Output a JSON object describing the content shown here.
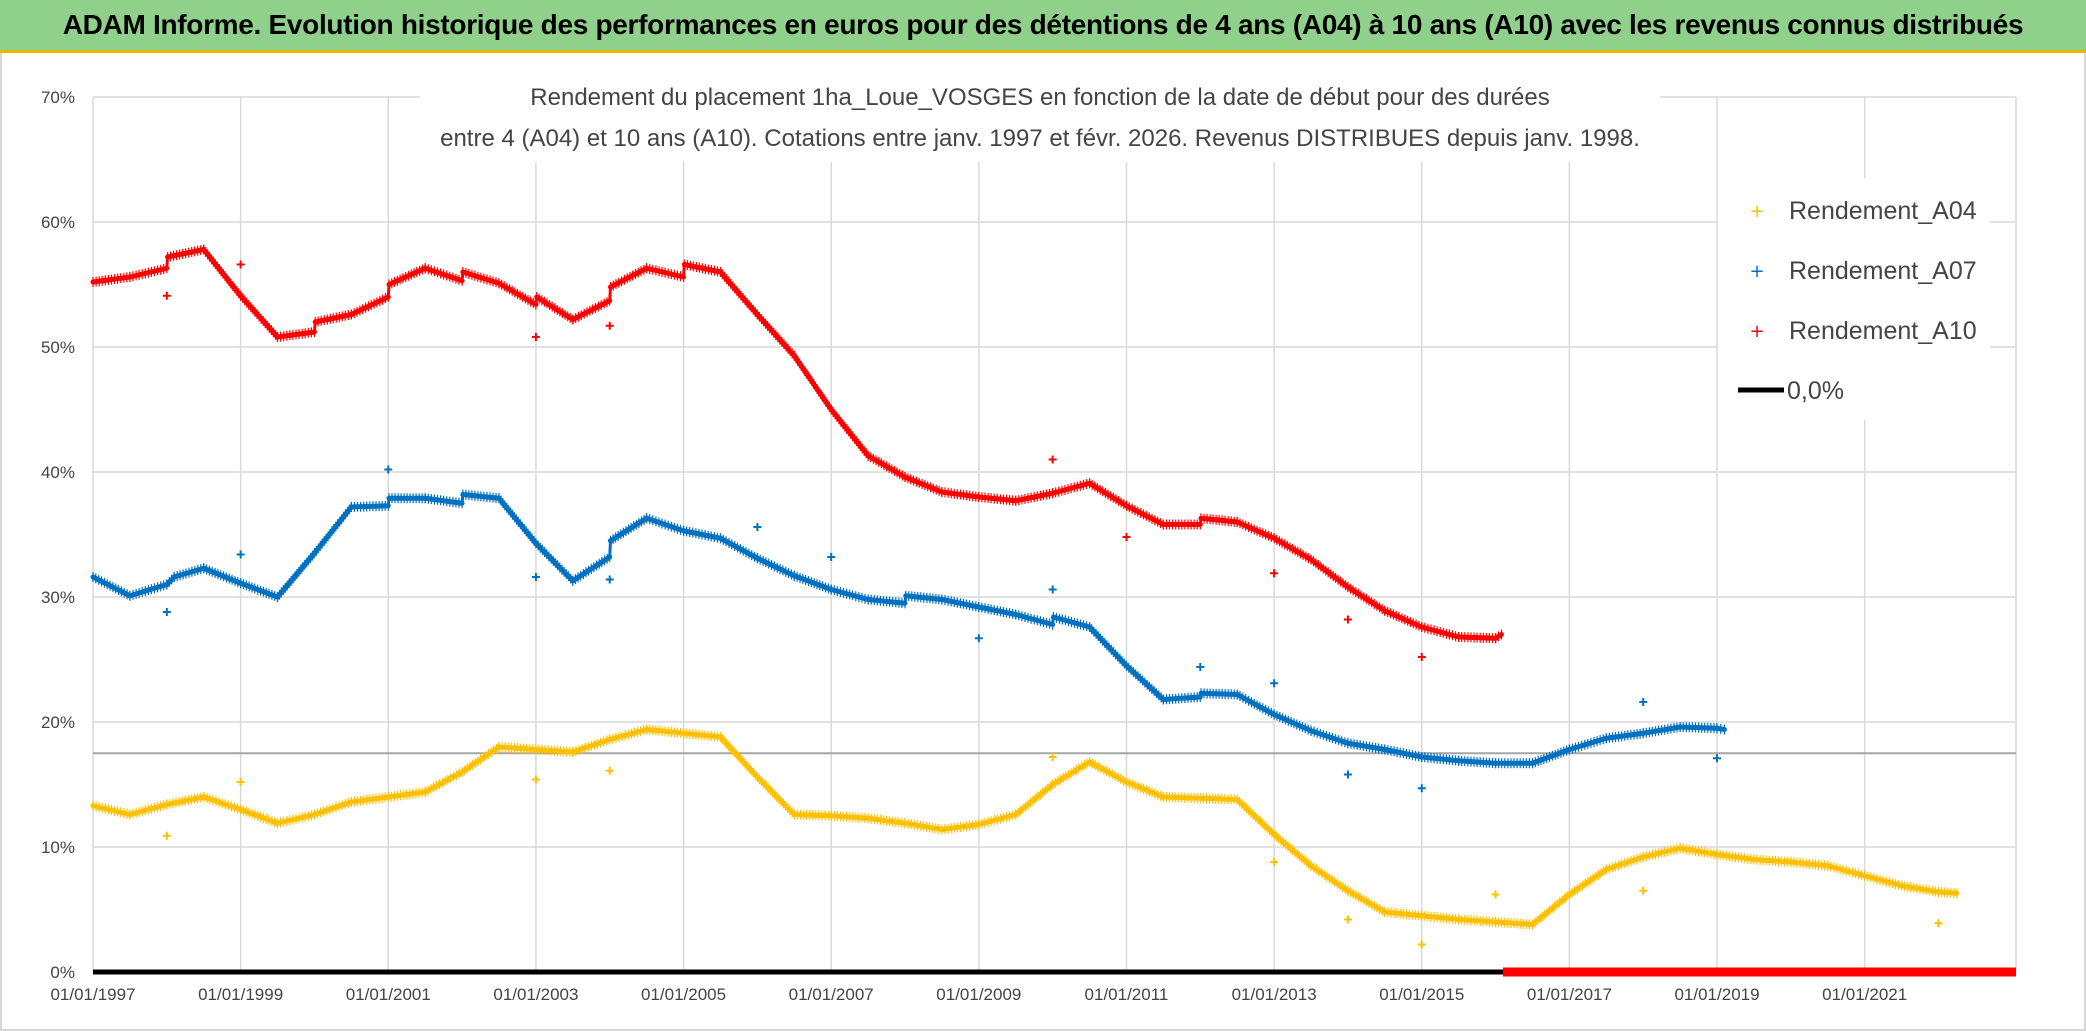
{
  "banner": {
    "title": "ADAM Informe. Evolution historique des performances en euros pour des détentions de 4 ans (A04) à 10 ans (A10) avec les revenus connus distribués"
  },
  "colors": {
    "banner_bg": "#8fd08a",
    "banner_border": "#e8b800",
    "a04": "#ffc000",
    "a07": "#0070c0",
    "a10": "#ff0000",
    "zero": "#000000",
    "grid": "#d9d9d9",
    "ref_line": "#a6a6a6"
  },
  "chart_data": {
    "type": "scatter",
    "title_lines": [
      "Rendement du placement 1ha_Loue_VOSGES en fonction de la date de début pour des durées",
      "entre 4 (A04) et 10 ans (A10). Cotations entre janv. 1997 et févr. 2026. Revenus DISTRIBUES depuis janv. 1998."
    ],
    "x_range": [
      1997.0,
      2023.05
    ],
    "y_range": [
      0,
      70
    ],
    "y_ticks": [
      0,
      10,
      20,
      30,
      40,
      50,
      60,
      70
    ],
    "y_tick_labels": [
      "0%",
      "10%",
      "20%",
      "30%",
      "40%",
      "50%",
      "60%",
      "70%"
    ],
    "x_ticks": [
      1997,
      1999,
      2001,
      2003,
      2005,
      2007,
      2009,
      2011,
      2013,
      2015,
      2017,
      2019,
      2021
    ],
    "x_tick_labels": [
      "01/01/1997",
      "01/01/1999",
      "01/01/2001",
      "01/01/2003",
      "01/01/2005",
      "01/01/2007",
      "01/01/2009",
      "01/01/2011",
      "01/01/2013",
      "01/01/2015",
      "01/01/2017",
      "01/01/2019",
      "01/01/2021"
    ],
    "reference_line_y": 17.5,
    "legend_position": "top-right",
    "legend": [
      "Rendement_A04",
      "Rendement_A07",
      "Rendement_A10",
      "0,0%"
    ],
    "series": [
      {
        "name": "Rendement_A04",
        "points": [
          [
            1997.0,
            13.3
          ],
          [
            1997.5,
            12.6
          ],
          [
            1998.0,
            13.4
          ],
          [
            1998.5,
            14.0
          ],
          [
            1999.0,
            13.0
          ],
          [
            1999.5,
            11.9
          ],
          [
            2000.0,
            12.6
          ],
          [
            2000.5,
            13.6
          ],
          [
            2001.0,
            14.0
          ],
          [
            2001.5,
            14.4
          ],
          [
            2002.0,
            16.0
          ],
          [
            2002.5,
            18.0
          ],
          [
            2003.0,
            17.8
          ],
          [
            2003.5,
            17.6
          ],
          [
            2004.0,
            18.6
          ],
          [
            2004.5,
            19.4
          ],
          [
            2005.0,
            19.1
          ],
          [
            2005.5,
            18.8
          ],
          [
            2006.0,
            15.6
          ],
          [
            2006.5,
            12.6
          ],
          [
            2007.0,
            12.5
          ],
          [
            2007.5,
            12.3
          ],
          [
            2008.0,
            11.9
          ],
          [
            2008.5,
            11.4
          ],
          [
            2009.0,
            11.8
          ],
          [
            2009.5,
            12.6
          ],
          [
            2010.0,
            15.0
          ],
          [
            2010.5,
            16.8
          ],
          [
            2011.0,
            15.2
          ],
          [
            2011.5,
            14.0
          ],
          [
            2012.0,
            13.9
          ],
          [
            2012.5,
            13.8
          ],
          [
            2013.0,
            11.0
          ],
          [
            2013.5,
            8.5
          ],
          [
            2014.0,
            6.5
          ],
          [
            2014.5,
            4.8
          ],
          [
            2015.0,
            4.5
          ],
          [
            2015.5,
            4.2
          ],
          [
            2016.0,
            4.0
          ],
          [
            2016.5,
            3.8
          ],
          [
            2017.0,
            6.2
          ],
          [
            2017.5,
            8.2
          ],
          [
            2018.0,
            9.2
          ],
          [
            2018.5,
            9.9
          ],
          [
            2019.0,
            9.4
          ],
          [
            2019.5,
            9.0
          ],
          [
            2020.0,
            8.8
          ],
          [
            2020.5,
            8.5
          ],
          [
            2021.0,
            7.7
          ],
          [
            2021.5,
            6.9
          ],
          [
            2022.0,
            6.4
          ],
          [
            2022.25,
            6.3
          ]
        ],
        "outliers": [
          [
            1998.0,
            10.9
          ],
          [
            1999.0,
            15.2
          ],
          [
            2003.0,
            15.4
          ],
          [
            2004.0,
            16.1
          ],
          [
            2010.0,
            17.2
          ],
          [
            2013.0,
            8.8
          ],
          [
            2014.0,
            4.2
          ],
          [
            2015.0,
            2.2
          ],
          [
            2016.0,
            6.2
          ],
          [
            2018.0,
            6.5
          ],
          [
            2022.0,
            3.9
          ]
        ]
      },
      {
        "name": "Rendement_A07",
        "points": [
          [
            1997.0,
            31.6
          ],
          [
            1997.5,
            30.1
          ],
          [
            1998.0,
            31.0
          ],
          [
            1998.1,
            31.6
          ],
          [
            1998.5,
            32.3
          ],
          [
            1999.0,
            31.1
          ],
          [
            1999.5,
            30.0
          ],
          [
            2000.0,
            33.5
          ],
          [
            2000.5,
            37.2
          ],
          [
            2001.0,
            37.3
          ],
          [
            2001.01,
            37.9
          ],
          [
            2001.5,
            37.9
          ],
          [
            2002.0,
            37.5
          ],
          [
            2002.01,
            38.2
          ],
          [
            2002.5,
            37.9
          ],
          [
            2003.0,
            34.3
          ],
          [
            2003.5,
            31.3
          ],
          [
            2004.0,
            33.2
          ],
          [
            2004.01,
            34.5
          ],
          [
            2004.5,
            36.3
          ],
          [
            2005.0,
            35.3
          ],
          [
            2005.5,
            34.7
          ],
          [
            2006.0,
            33.1
          ],
          [
            2006.5,
            31.7
          ],
          [
            2007.0,
            30.6
          ],
          [
            2007.5,
            29.8
          ],
          [
            2008.0,
            29.5
          ],
          [
            2008.01,
            30.1
          ],
          [
            2008.5,
            29.8
          ],
          [
            2009.0,
            29.2
          ],
          [
            2009.5,
            28.6
          ],
          [
            2010.0,
            27.8
          ],
          [
            2010.01,
            28.4
          ],
          [
            2010.5,
            27.6
          ],
          [
            2011.0,
            24.5
          ],
          [
            2011.5,
            21.8
          ],
          [
            2012.0,
            22.0
          ],
          [
            2012.01,
            22.3
          ],
          [
            2012.5,
            22.2
          ],
          [
            2013.0,
            20.6
          ],
          [
            2013.5,
            19.3
          ],
          [
            2014.0,
            18.3
          ],
          [
            2014.5,
            17.8
          ],
          [
            2015.0,
            17.2
          ],
          [
            2015.5,
            16.9
          ],
          [
            2016.0,
            16.7
          ],
          [
            2016.5,
            16.7
          ],
          [
            2017.0,
            17.8
          ],
          [
            2017.5,
            18.7
          ],
          [
            2018.0,
            19.1
          ],
          [
            2018.5,
            19.6
          ],
          [
            2019.0,
            19.5
          ],
          [
            2019.1,
            19.4
          ]
        ],
        "outliers": [
          [
            1998.0,
            28.8
          ],
          [
            1999.0,
            33.4
          ],
          [
            2001.0,
            40.2
          ],
          [
            2003.0,
            31.6
          ],
          [
            2004.0,
            31.4
          ],
          [
            2006.0,
            35.6
          ],
          [
            2007.0,
            33.2
          ],
          [
            2009.0,
            26.7
          ],
          [
            2010.0,
            30.6
          ],
          [
            2012.0,
            24.4
          ],
          [
            2013.0,
            23.1
          ],
          [
            2014.0,
            15.8
          ],
          [
            2015.0,
            14.7
          ],
          [
            2018.0,
            21.6
          ],
          [
            2019.0,
            17.1
          ]
        ]
      },
      {
        "name": "Rendement_A10",
        "points": [
          [
            1997.0,
            55.2
          ],
          [
            1997.5,
            55.6
          ],
          [
            1998.0,
            56.3
          ],
          [
            1998.01,
            57.2
          ],
          [
            1998.5,
            57.8
          ],
          [
            1999.0,
            54.1
          ],
          [
            1999.5,
            50.8
          ],
          [
            2000.0,
            51.2
          ],
          [
            2000.01,
            52.0
          ],
          [
            2000.5,
            52.6
          ],
          [
            2001.0,
            54.0
          ],
          [
            2001.01,
            55.0
          ],
          [
            2001.5,
            56.3
          ],
          [
            2002.0,
            55.3
          ],
          [
            2002.01,
            56.0
          ],
          [
            2002.5,
            55.1
          ],
          [
            2003.0,
            53.4
          ],
          [
            2003.01,
            54.0
          ],
          [
            2003.5,
            52.2
          ],
          [
            2004.0,
            53.7
          ],
          [
            2004.01,
            54.8
          ],
          [
            2004.5,
            56.3
          ],
          [
            2005.0,
            55.6
          ],
          [
            2005.01,
            56.6
          ],
          [
            2005.5,
            56.0
          ],
          [
            2006.0,
            52.6
          ],
          [
            2006.5,
            49.3
          ],
          [
            2007.0,
            45.0
          ],
          [
            2007.5,
            41.3
          ],
          [
            2008.0,
            39.6
          ],
          [
            2008.5,
            38.4
          ],
          [
            2009.0,
            38.0
          ],
          [
            2009.5,
            37.7
          ],
          [
            2010.0,
            38.3
          ],
          [
            2010.5,
            39.1
          ],
          [
            2011.0,
            37.3
          ],
          [
            2011.5,
            35.8
          ],
          [
            2012.0,
            35.8
          ],
          [
            2012.01,
            36.3
          ],
          [
            2012.5,
            36.0
          ],
          [
            2013.0,
            34.7
          ],
          [
            2013.5,
            33.0
          ],
          [
            2014.0,
            30.8
          ],
          [
            2014.5,
            28.9
          ],
          [
            2015.0,
            27.6
          ],
          [
            2015.5,
            26.8
          ],
          [
            2016.0,
            26.7
          ],
          [
            2016.08,
            27.0
          ]
        ],
        "outliers": [
          [
            1998.0,
            54.1
          ],
          [
            1999.0,
            56.6
          ],
          [
            2003.0,
            50.8
          ],
          [
            2004.0,
            51.7
          ],
          [
            2010.0,
            41.0
          ],
          [
            2011.0,
            34.8
          ],
          [
            2013.0,
            31.9
          ],
          [
            2014.0,
            28.2
          ],
          [
            2015.0,
            25.2
          ]
        ]
      },
      {
        "name": "0,0%",
        "points": [
          [
            1997.0,
            0
          ],
          [
            2023.05,
            0
          ]
        ]
      }
    ],
    "zero_red_marker_range": [
      2016.1,
      2023.05
    ]
  }
}
